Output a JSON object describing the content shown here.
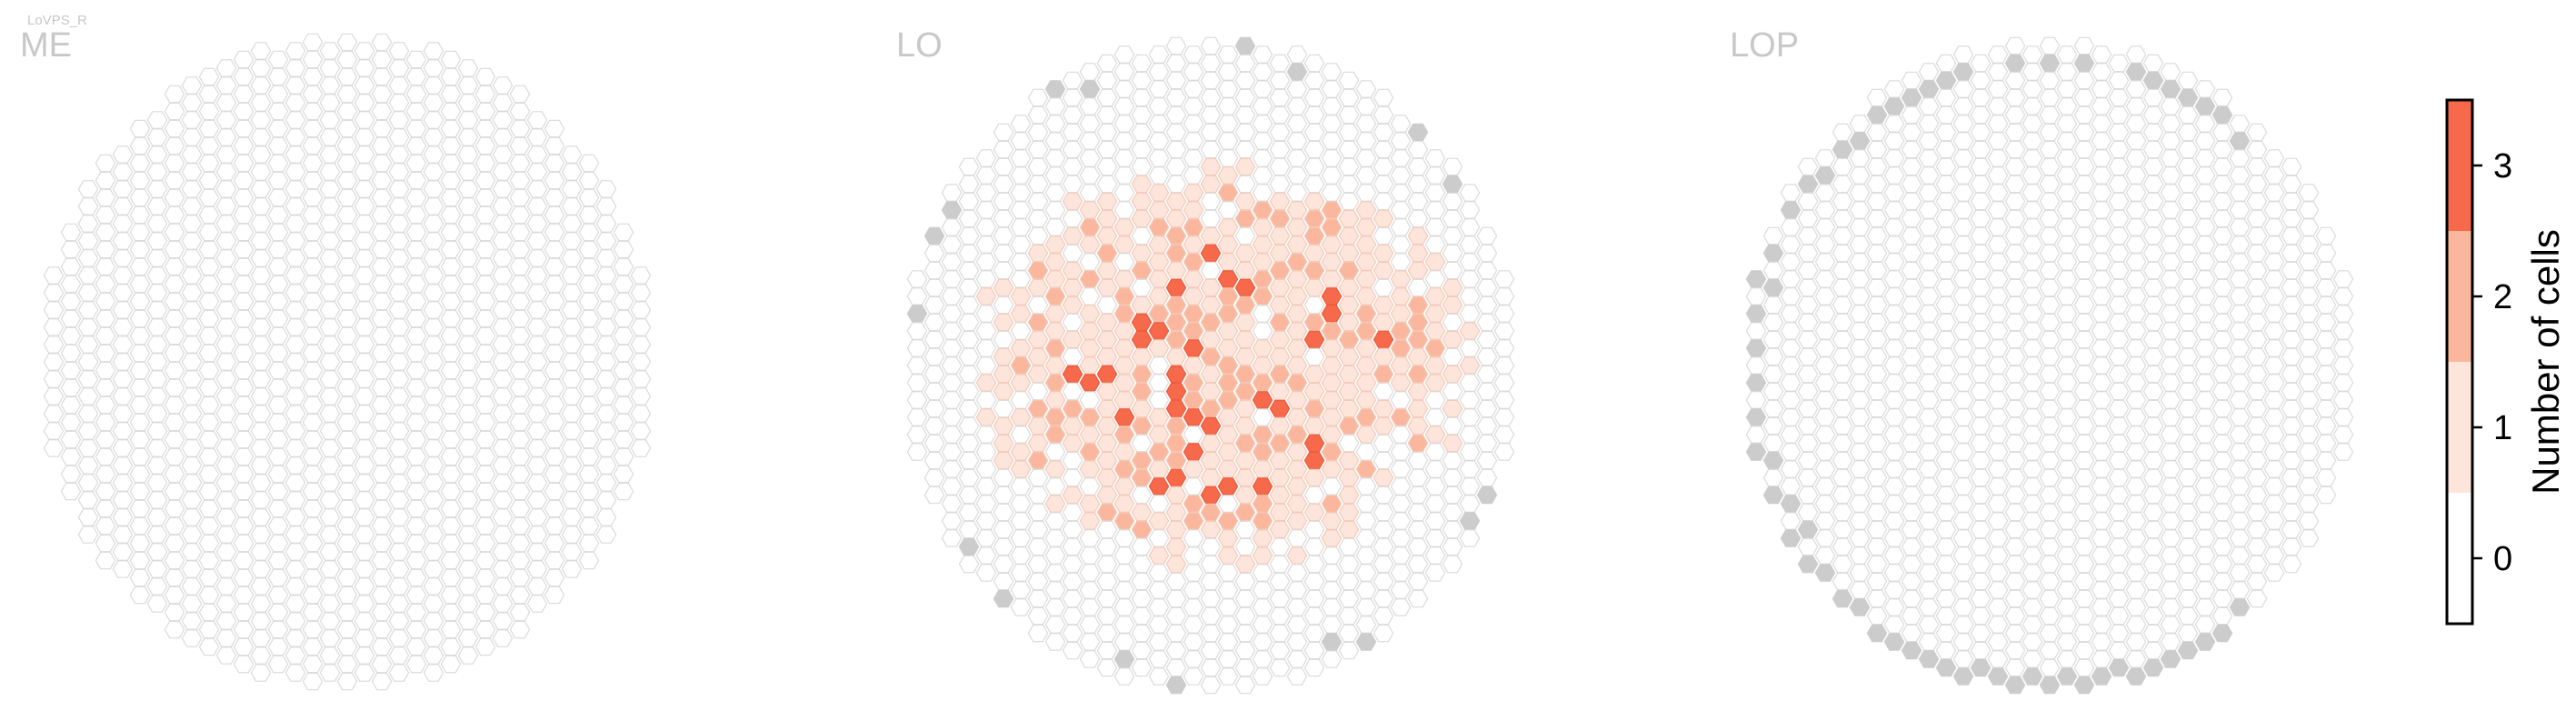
{
  "figure": {
    "cell_type_label": "LoVPS_R"
  },
  "colors": {
    "empty_fill": "#ffffff",
    "hex_stroke": "#dadada",
    "edge_fill": "#cccccc",
    "title_color": "#c8c8c8",
    "tick_color": "#000000",
    "scale": [
      "#ffffff",
      "#fde5db",
      "#fbb79d",
      "#f6694a"
    ]
  },
  "chart_data": [
    {
      "type": "heatmap",
      "title": "ME",
      "shape": "hexagonal column grid",
      "note_values": "all columns contain 0 cells",
      "nonzero_cells": 0,
      "boundary_cells": 0
    },
    {
      "type": "heatmap",
      "title": "LO",
      "shape": "hexagonal column grid",
      "value_levels": [
        0,
        1,
        2,
        3
      ],
      "boundary_cells": 17
    },
    {
      "type": "heatmap",
      "title": "LOP",
      "shape": "hexagonal column grid",
      "note_values": "all columns contain 0 cells",
      "nonzero_cells": 0,
      "boundary_cells": 60
    }
  ],
  "colorbar": {
    "label": "Number of cells",
    "ticks": [
      "0",
      "1",
      "2",
      "3"
    ],
    "range": [
      -0.5,
      3.5
    ]
  }
}
